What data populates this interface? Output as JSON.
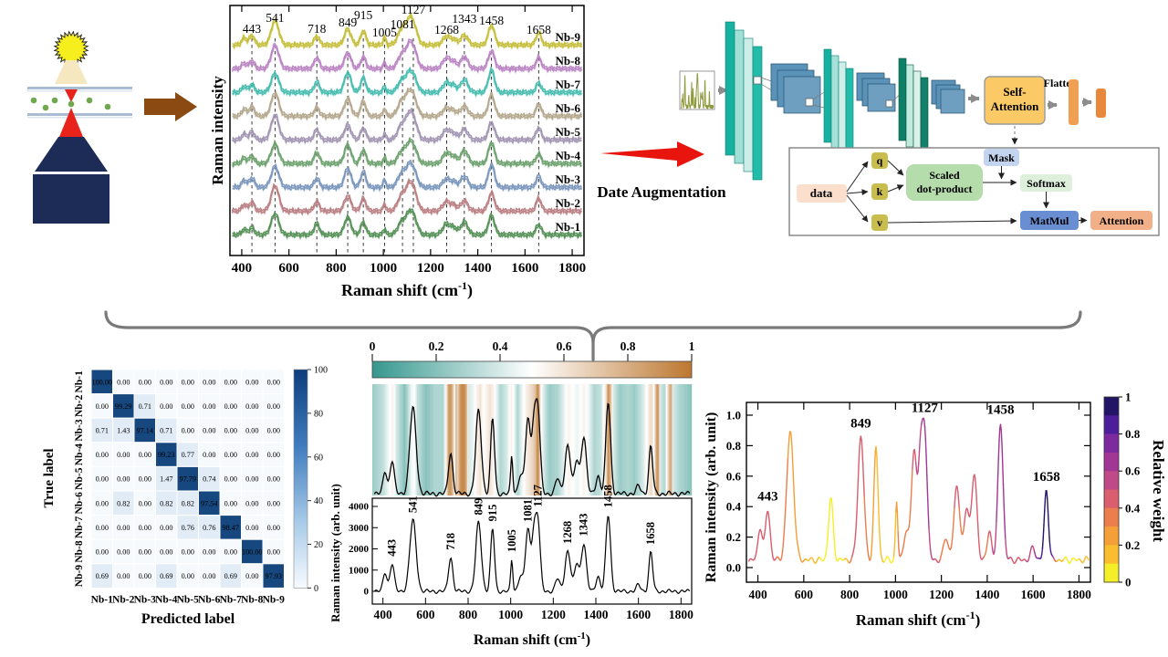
{
  "labels": {
    "raman_intensity": "Raman intensity",
    "raman_intensity_arb": "Raman intensity (arb. unit)",
    "true_label": "True label",
    "predicted_label": "Predicted label",
    "relative_weight": "Relative weight",
    "date_augmentation": "Date Augmentation",
    "flatten": "Flatten",
    "self_attention_line1": "Self-",
    "self_attention_line2": "Attention",
    "cm_pre": "Raman shift (cm",
    "cm_sup": "-1",
    "cm_post": ")"
  },
  "attention_block": {
    "data": "data",
    "q": "q",
    "k": "k",
    "v": "v",
    "scaled_line1": "Scaled",
    "scaled_line2": "dot-product",
    "mask": "Mask",
    "softmax": "Softmax",
    "matmul": "MatMul",
    "attention": "Attention"
  },
  "colors": {
    "accent_red": "#e01010",
    "arrow_brown": "#8a4a12",
    "conv_teal_dark": "#1fb4a3",
    "conv_teal_light": "#a8e6da",
    "conv_green_dark": "#0e8068",
    "feature_map_blue": "#5b93b8",
    "self_attention_box": "#fbca66",
    "flatten_bar": "#f0a053",
    "diag_cell_blue": "#16477e"
  },
  "chart_data": [
    {
      "id": "stacked_spectra",
      "type": "line",
      "xlabel": "Raman shift (cm-1)",
      "ylabel": "Raman intensity",
      "x_range": [
        350,
        1850
      ],
      "x_ticks": [
        400,
        600,
        800,
        1000,
        1200,
        1400,
        1600,
        1800
      ],
      "peak_positions": [
        443,
        541,
        718,
        849,
        915,
        1005,
        1081,
        1127,
        1268,
        1343,
        1458,
        1658
      ],
      "series": [
        {
          "name": "Nb-1",
          "color": "#569158"
        },
        {
          "name": "Nb-2",
          "color": "#bb8084"
        },
        {
          "name": "Nb-3",
          "color": "#7b97bd"
        },
        {
          "name": "Nb-4",
          "color": "#6ea26f"
        },
        {
          "name": "Nb-5",
          "color": "#a296b3"
        },
        {
          "name": "Nb-6",
          "color": "#b5a88e"
        },
        {
          "name": "Nb-7",
          "color": "#48bdb0"
        },
        {
          "name": "Nb-8",
          "color": "#bb85c4"
        },
        {
          "name": "Nb-9",
          "color": "#c6bf3e"
        }
      ],
      "peak_components": [
        [
          410,
          0.28,
          10
        ],
        [
          443,
          0.38,
          11
        ],
        [
          541,
          1.0,
          16
        ],
        [
          718,
          0.45,
          11
        ],
        [
          849,
          0.78,
          14
        ],
        [
          915,
          0.62,
          11
        ],
        [
          1005,
          0.3,
          6
        ],
        [
          1081,
          0.7,
          18
        ],
        [
          1108,
          0.5,
          12
        ],
        [
          1127,
          0.85,
          16
        ],
        [
          1268,
          0.44,
          16
        ],
        [
          1300,
          0.25,
          12
        ],
        [
          1343,
          0.52,
          15
        ],
        [
          1458,
          0.92,
          13
        ],
        [
          1658,
          0.5,
          11
        ]
      ]
    },
    {
      "id": "confusion_matrix",
      "type": "heatmap",
      "xlabel": "Predicted label",
      "ylabel": "True label",
      "categories": [
        "Nb-1",
        "Nb-2",
        "Nb-3",
        "Nb-4",
        "Nb-5",
        "Nb-6",
        "Nb-7",
        "Nb-8",
        "Nb-9"
      ],
      "values": [
        [
          100,
          0,
          0,
          0,
          0,
          0,
          0,
          0,
          0
        ],
        [
          0,
          99.29,
          0.71,
          0,
          0,
          0,
          0,
          0,
          0
        ],
        [
          0.71,
          1.43,
          97.14,
          0.71,
          0,
          0,
          0,
          0,
          0
        ],
        [
          0,
          0,
          0,
          99.23,
          0.77,
          0,
          0,
          0,
          0
        ],
        [
          0,
          0,
          0,
          1.47,
          97.79,
          0.74,
          0,
          0,
          0
        ],
        [
          0,
          0.82,
          0,
          0.82,
          0.82,
          97.54,
          0,
          0,
          0
        ],
        [
          0,
          0,
          0,
          0,
          0.76,
          0.76,
          98.47,
          0,
          0
        ],
        [
          0,
          0,
          0,
          0,
          0,
          0,
          0,
          100,
          0
        ],
        [
          0.69,
          0,
          0,
          0.69,
          0,
          0,
          0.69,
          0,
          97.93
        ]
      ],
      "colorbar_ticks": [
        "100",
        "80",
        "60",
        "40",
        "20",
        "0"
      ],
      "value_range": [
        0,
        100
      ]
    },
    {
      "id": "weight_heatmap_spectrum",
      "type": "heatmap",
      "xlabel": "Raman shift (cm-1)",
      "ylabel": "Raman intensity (arb. unit)",
      "colorbar_ticks": [
        "0",
        "0.2",
        "0.4",
        "0.6",
        "0.8",
        "1"
      ],
      "y_ticks": [
        0,
        1000,
        2000,
        3000,
        4000
      ],
      "x_ticks": [
        400,
        600,
        800,
        1000,
        1200,
        1400,
        1600,
        1800
      ],
      "x_range": [
        350,
        1850
      ],
      "y_range": [
        0,
        4400
      ],
      "peak_labels": [
        {
          "x": 443,
          "color": "#111111"
        },
        {
          "x": 541,
          "color": "#111111"
        },
        {
          "x": 718,
          "color": "#cc1111"
        },
        {
          "x": 849,
          "color": "#2121b4"
        },
        {
          "x": 915,
          "color": "#2121b4"
        },
        {
          "x": 1005,
          "color": "#111111"
        },
        {
          "x": 1081,
          "color": "#2121b4"
        },
        {
          "x": 1127,
          "color": "#cc1111"
        },
        {
          "x": 1268,
          "color": "#111111"
        },
        {
          "x": 1343,
          "color": "#111111"
        },
        {
          "x": 1458,
          "color": "#cc1111"
        },
        {
          "x": 1658,
          "color": "#111111"
        }
      ],
      "peak_components": [
        [
          410,
          900,
          9
        ],
        [
          443,
          1300,
          10
        ],
        [
          541,
          3350,
          15
        ],
        [
          718,
          1600,
          10
        ],
        [
          849,
          3250,
          13
        ],
        [
          915,
          2950,
          9
        ],
        [
          1005,
          1500,
          5
        ],
        [
          1045,
          700,
          10
        ],
        [
          1081,
          2900,
          12
        ],
        [
          1108,
          2200,
          9
        ],
        [
          1127,
          3400,
          11
        ],
        [
          1220,
          600,
          10
        ],
        [
          1268,
          1900,
          13
        ],
        [
          1310,
          1300,
          10
        ],
        [
          1343,
          2250,
          12
        ],
        [
          1410,
          700,
          10
        ],
        [
          1458,
          3600,
          11
        ],
        [
          1600,
          300,
          10
        ],
        [
          1658,
          1850,
          9
        ]
      ],
      "weight_profile": [
        [
          350,
          0.25
        ],
        [
          400,
          0.35
        ],
        [
          430,
          0.5
        ],
        [
          445,
          0.55
        ],
        [
          460,
          0.4
        ],
        [
          500,
          0.2
        ],
        [
          530,
          0.45
        ],
        [
          545,
          0.5
        ],
        [
          560,
          0.35
        ],
        [
          600,
          0.2
        ],
        [
          640,
          0.3
        ],
        [
          680,
          0.3
        ],
        [
          695,
          0.55
        ],
        [
          705,
          0.85
        ],
        [
          715,
          0.9
        ],
        [
          725,
          0.75
        ],
        [
          735,
          0.5
        ],
        [
          742,
          0.85
        ],
        [
          748,
          0.6
        ],
        [
          755,
          0.8
        ],
        [
          762,
          0.9
        ],
        [
          775,
          0.95
        ],
        [
          788,
          0.85
        ],
        [
          800,
          0.4
        ],
        [
          820,
          0.45
        ],
        [
          840,
          0.55
        ],
        [
          855,
          0.6
        ],
        [
          870,
          0.5
        ],
        [
          885,
          0.55
        ],
        [
          900,
          0.6
        ],
        [
          915,
          0.55
        ],
        [
          930,
          0.45
        ],
        [
          950,
          0.3
        ],
        [
          980,
          0.4
        ],
        [
          1000,
          0.55
        ],
        [
          1010,
          0.5
        ],
        [
          1030,
          0.3
        ],
        [
          1050,
          0.45
        ],
        [
          1070,
          0.55
        ],
        [
          1085,
          0.6
        ],
        [
          1100,
          0.65
        ],
        [
          1115,
          0.75
        ],
        [
          1122,
          0.95
        ],
        [
          1130,
          0.85
        ],
        [
          1140,
          0.5
        ],
        [
          1160,
          0.35
        ],
        [
          1180,
          0.25
        ],
        [
          1220,
          0.3
        ],
        [
          1250,
          0.45
        ],
        [
          1268,
          0.55
        ],
        [
          1290,
          0.5
        ],
        [
          1310,
          0.45
        ],
        [
          1343,
          0.55
        ],
        [
          1365,
          0.45
        ],
        [
          1390,
          0.3
        ],
        [
          1420,
          0.35
        ],
        [
          1445,
          0.6
        ],
        [
          1455,
          0.9
        ],
        [
          1465,
          0.8
        ],
        [
          1480,
          0.4
        ],
        [
          1510,
          0.25
        ],
        [
          1550,
          0.3
        ],
        [
          1580,
          0.25
        ],
        [
          1620,
          0.4
        ],
        [
          1650,
          0.6
        ],
        [
          1658,
          0.65
        ],
        [
          1670,
          0.5
        ],
        [
          1685,
          0.9
        ],
        [
          1692,
          0.85
        ],
        [
          1700,
          0.4
        ],
        [
          1720,
          0.3
        ],
        [
          1745,
          0.8
        ],
        [
          1752,
          0.85
        ],
        [
          1760,
          0.4
        ],
        [
          1790,
          0.3
        ],
        [
          1820,
          0.25
        ],
        [
          1850,
          0.2
        ]
      ]
    },
    {
      "id": "weighted_spectrum",
      "type": "line",
      "xlabel": "Raman shift (cm-1)",
      "ylabel": "Raman intensity (arb. unit)",
      "colorbar_label": "Relative weight",
      "y_ticks": [
        "0.0",
        "0.2",
        "0.4",
        "0.6",
        "0.8",
        "1.0"
      ],
      "x_ticks": [
        400,
        600,
        800,
        1000,
        1200,
        1400,
        1600,
        1800
      ],
      "x_range": [
        350,
        1850
      ],
      "y_range": [
        0,
        1.05
      ],
      "colorbar_ticks": [
        "1",
        "0.8",
        "0.6",
        "0.4",
        "0.2",
        "0"
      ],
      "weight_colors": [
        "#f5ef2a",
        "#f9bd2f",
        "#f49f37",
        "#ec7d4d",
        "#da5e6e",
        "#bf4a87",
        "#a23695",
        "#7c2a9e",
        "#4c1e9c",
        "#221566"
      ],
      "peak_labels": [
        {
          "x": 443,
          "color": "#111111"
        },
        {
          "x": 849,
          "color": "#111111"
        },
        {
          "x": 1127,
          "color": "#2121b4"
        },
        {
          "x": 1458,
          "color": "#2121b4"
        },
        {
          "x": 1658,
          "color": "#cc1111"
        }
      ],
      "peak_components": [
        [
          410,
          0.22,
          9
        ],
        [
          443,
          0.33,
          10
        ],
        [
          541,
          0.84,
          15
        ],
        [
          718,
          0.4,
          10
        ],
        [
          849,
          0.81,
          13
        ],
        [
          915,
          0.74,
          9
        ],
        [
          1005,
          0.38,
          5
        ],
        [
          1045,
          0.18,
          10
        ],
        [
          1081,
          0.72,
          12
        ],
        [
          1108,
          0.55,
          9
        ],
        [
          1127,
          0.85,
          11
        ],
        [
          1220,
          0.15,
          10
        ],
        [
          1268,
          0.48,
          13
        ],
        [
          1310,
          0.33,
          10
        ],
        [
          1343,
          0.56,
          12
        ],
        [
          1410,
          0.18,
          10
        ],
        [
          1458,
          0.9,
          11
        ],
        [
          1600,
          0.08,
          10
        ],
        [
          1658,
          0.46,
          9
        ]
      ],
      "weight_profile": [
        [
          350,
          0.45
        ],
        [
          430,
          0.45
        ],
        [
          470,
          0.42
        ],
        [
          500,
          0.35
        ],
        [
          530,
          0.3
        ],
        [
          560,
          0.28
        ],
        [
          600,
          0.22
        ],
        [
          640,
          0.12
        ],
        [
          700,
          0.08
        ],
        [
          750,
          0.06
        ],
        [
          790,
          0.12
        ],
        [
          810,
          0.42
        ],
        [
          830,
          0.45
        ],
        [
          860,
          0.42
        ],
        [
          890,
          0.3
        ],
        [
          910,
          0.22
        ],
        [
          925,
          0.15
        ],
        [
          950,
          0.1
        ],
        [
          990,
          0.07
        ],
        [
          1010,
          0.3
        ],
        [
          1030,
          0.35
        ],
        [
          1060,
          0.3
        ],
        [
          1080,
          0.45
        ],
        [
          1100,
          0.55
        ],
        [
          1120,
          0.62
        ],
        [
          1140,
          0.62
        ],
        [
          1160,
          0.55
        ],
        [
          1185,
          0.45
        ],
        [
          1210,
          0.3
        ],
        [
          1240,
          0.35
        ],
        [
          1265,
          0.42
        ],
        [
          1290,
          0.38
        ],
        [
          1320,
          0.45
        ],
        [
          1345,
          0.5
        ],
        [
          1370,
          0.42
        ],
        [
          1400,
          0.38
        ],
        [
          1430,
          0.55
        ],
        [
          1455,
          0.68
        ],
        [
          1475,
          0.62
        ],
        [
          1500,
          0.5
        ],
        [
          1540,
          0.48
        ],
        [
          1570,
          0.5
        ],
        [
          1600,
          0.55
        ],
        [
          1620,
          0.75
        ],
        [
          1645,
          0.92
        ],
        [
          1660,
          0.95
        ],
        [
          1680,
          0.88
        ],
        [
          1700,
          0.3
        ],
        [
          1715,
          0.12
        ],
        [
          1750,
          0.08
        ],
        [
          1800,
          0.1
        ],
        [
          1850,
          0.1
        ]
      ]
    }
  ]
}
